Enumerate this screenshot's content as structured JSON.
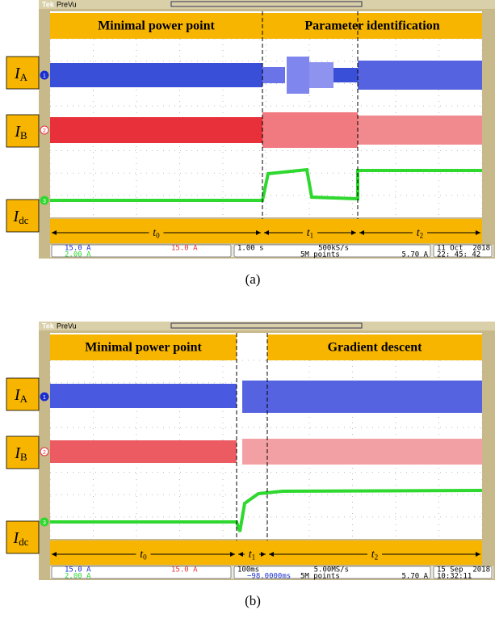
{
  "panels": [
    {
      "caption": "(a)",
      "brand": "Tek",
      "mode": "PreVu",
      "sections": [
        "Minimal power point",
        "Parameter identification"
      ],
      "signals": [
        {
          "name": "I",
          "sub": "A",
          "channel": "1"
        },
        {
          "name": "I",
          "sub": "B",
          "channel": "2"
        },
        {
          "name": "I",
          "sub": "dc",
          "channel": "3"
        }
      ],
      "intervals": [
        {
          "name": "t",
          "sub": "0"
        },
        {
          "name": "t",
          "sub": "1"
        },
        {
          "name": "t",
          "sub": "2"
        }
      ],
      "status": {
        "ch1": "15.0 A",
        "ch2": "15.0 A",
        "ch3": "2.00 A",
        "timebase": "1.00 s",
        "sample_rate": "500kS/s",
        "record": "5M points",
        "trigger_level": "5.70 A",
        "date": "11 Oct",
        "year": "2018",
        "time": "22: 45: 42"
      }
    },
    {
      "caption": "(b)",
      "brand": "Tek",
      "mode": "PreVu",
      "sections": [
        "Minimal power point",
        "Gradient descent"
      ],
      "signals": [
        {
          "name": "I",
          "sub": "A",
          "channel": "1"
        },
        {
          "name": "I",
          "sub": "B",
          "channel": "2"
        },
        {
          "name": "I",
          "sub": "dc",
          "channel": "3"
        }
      ],
      "intervals": [
        {
          "name": "t",
          "sub": "0"
        },
        {
          "name": "t",
          "sub": "1"
        },
        {
          "name": "t",
          "sub": "2"
        }
      ],
      "status": {
        "ch1": "15.0 A",
        "ch2": "15.0 A",
        "ch3": "2.00 A",
        "timebase": "100ms",
        "offset": "−98.0000ms",
        "sample_rate": "5.00MS/s",
        "record": "5M points",
        "trigger_level": "5.70 A",
        "date": "15 Sep",
        "year": "2018",
        "time": "10:32:11"
      }
    }
  ]
}
